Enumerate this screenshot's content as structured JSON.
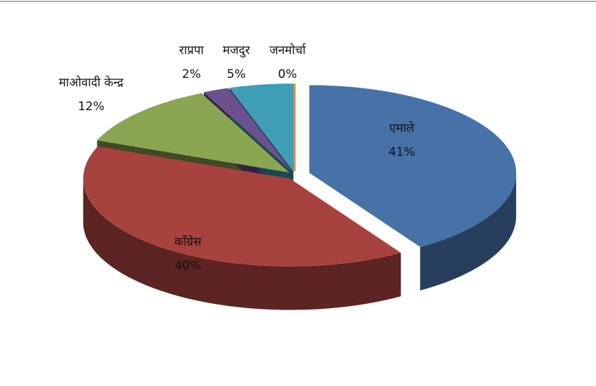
{
  "chart_data": {
    "type": "pie",
    "categories": [
      "एमाले",
      "काँग्रेस",
      "माओवादी केन्द्र",
      "राप्रपा",
      "मजदुर",
      "जनमोर्चा"
    ],
    "values": [
      41,
      40,
      12,
      2,
      5,
      0
    ],
    "value_labels": [
      "41%",
      "40%",
      "12%",
      "2%",
      "5%",
      "0%"
    ],
    "colors": [
      "#4672a8",
      "#a8423f",
      "#8aa652",
      "#6c5190",
      "#3f9db6",
      "#e5892f"
    ]
  }
}
